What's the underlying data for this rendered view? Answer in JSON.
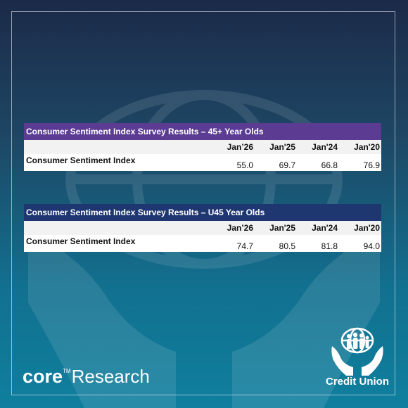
{
  "table_45plus": {
    "title": "Consumer Sentiment Index Survey Results – 45+ Year Olds",
    "headers": [
      "Jan’26",
      "Jan'25",
      "Jan'24",
      "Jan'20"
    ],
    "row_label": "Consumer Sentiment Index",
    "values": [
      "55.0",
      "69.7",
      "66.8",
      "76.9"
    ]
  },
  "table_u45": {
    "title": "Consumer Sentiment Index Survey Results – U45 Year Olds",
    "headers": [
      "Jan’26",
      "Jan'25",
      "Jan'24",
      "Jan'20"
    ],
    "row_label": "Consumer Sentiment Index",
    "values": [
      "74.7",
      "80.5",
      "81.8",
      "94.0"
    ]
  },
  "branding": {
    "core_word": "core",
    "trademark": "TM",
    "research_word": "Research",
    "credit_union": "Credit Union"
  },
  "colors": {
    "table1_title_bg": "#5b3c92",
    "table2_title_bg": "#1f3770",
    "background_top": "#1b2a48",
    "background_bottom": "#0f7f9e"
  }
}
